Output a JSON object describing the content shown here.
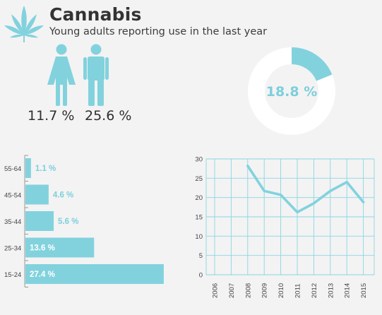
{
  "header": {
    "title": "Cannabis",
    "subtitle": "Young adults reporting use in the last year"
  },
  "colors": {
    "accent": "#82d2de",
    "accent_text": "#7ccfdc",
    "background": "#f3f3f3",
    "white": "#ffffff",
    "grid": "#8ad6e1",
    "axis": "#9a9a9a"
  },
  "icons": [
    "cannabis-leaf-icon",
    "female-icon",
    "male-icon"
  ],
  "gender": {
    "female_pct": "11.7 %",
    "male_pct": "25.6 %"
  },
  "donut": {
    "label": "18.8 %",
    "value": 0.188
  },
  "chart_data": [
    {
      "type": "bar",
      "orientation": "horizontal",
      "categories": [
        "55-64",
        "45-54",
        "35-44",
        "25-34",
        "15-24"
      ],
      "values": [
        1.1,
        4.6,
        5.6,
        13.6,
        27.4
      ],
      "value_labels": [
        "1.1 %",
        "4.6 %",
        "5.6 %",
        "13.6 %",
        "27.4 %"
      ],
      "xlim": [
        0,
        28
      ]
    },
    {
      "type": "line",
      "x": [
        "2006",
        "2007",
        "2008",
        "2009",
        "2010",
        "2011",
        "2012",
        "2013",
        "2014",
        "2015"
      ],
      "series": [
        {
          "values": [
            null,
            null,
            28.2,
            21.7,
            20.7,
            16.2,
            18.5,
            21.7,
            24.0,
            18.8
          ]
        }
      ],
      "ylim": [
        0,
        30
      ],
      "yticks": [
        "0",
        "5",
        "10",
        "15",
        "20",
        "25",
        "30"
      ],
      "grid": true
    }
  ]
}
